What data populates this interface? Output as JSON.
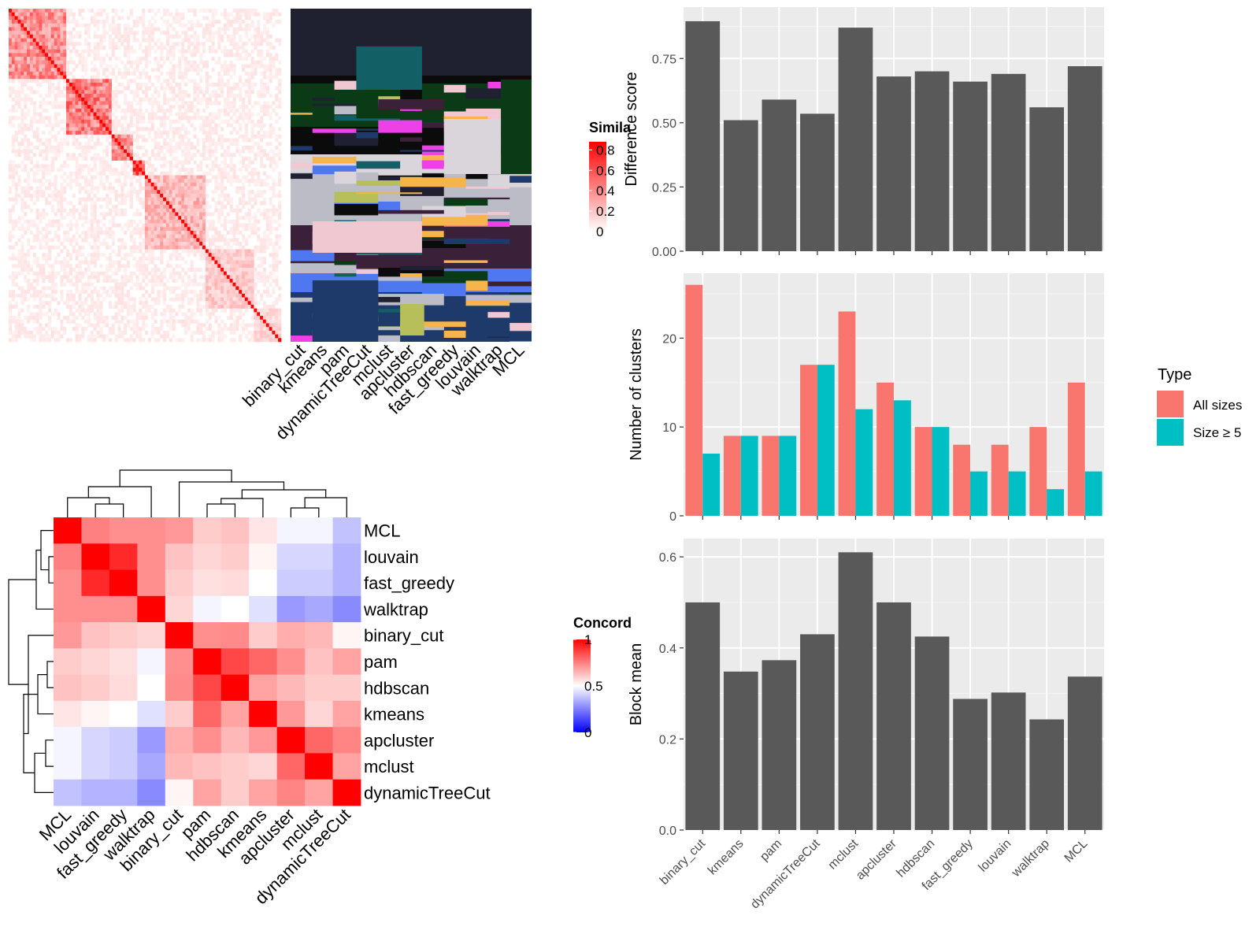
{
  "panels": {
    "similarity": {
      "legend_title": "Simila",
      "legend_ticks": [
        "0.8",
        "0.6",
        "0.4",
        "0.2",
        "0"
      ],
      "low_color": "#ffffff",
      "high_color": "#ff0000",
      "method_labels": [
        "binary_cut",
        "kmeans",
        "pam",
        "dynamicTreeCut",
        "mclust",
        "apcluster",
        "hdbscan",
        "fast_greedy",
        "louvain",
        "walktrap",
        "MCL"
      ]
    },
    "concordance": {
      "legend_title": "Concord",
      "legend_ticks": [
        "1",
        "0.5",
        "0"
      ],
      "colors": {
        "low": "#0000ff",
        "mid": "#ffffff",
        "high": "#ff0000"
      },
      "order": [
        "MCL",
        "louvain",
        "fast_greedy",
        "walktrap",
        "binary_cut",
        "pam",
        "hdbscan",
        "kmeans",
        "apcluster",
        "mclust",
        "dynamicTreeCut"
      ],
      "matrix": [
        [
          1.0,
          0.75,
          0.72,
          0.72,
          0.7,
          0.6,
          0.62,
          0.55,
          0.48,
          0.48,
          0.38
        ],
        [
          0.75,
          1.0,
          0.92,
          0.72,
          0.62,
          0.58,
          0.6,
          0.52,
          0.42,
          0.42,
          0.35
        ],
        [
          0.72,
          0.92,
          1.0,
          0.72,
          0.6,
          0.56,
          0.57,
          0.5,
          0.4,
          0.4,
          0.35
        ],
        [
          0.72,
          0.72,
          0.72,
          1.0,
          0.58,
          0.48,
          0.5,
          0.44,
          0.3,
          0.33,
          0.27
        ],
        [
          0.7,
          0.62,
          0.6,
          0.58,
          1.0,
          0.72,
          0.73,
          0.6,
          0.66,
          0.64,
          0.52
        ],
        [
          0.6,
          0.58,
          0.56,
          0.48,
          0.72,
          1.0,
          0.86,
          0.8,
          0.72,
          0.62,
          0.68
        ],
        [
          0.62,
          0.6,
          0.57,
          0.5,
          0.73,
          0.86,
          1.0,
          0.68,
          0.64,
          0.6,
          0.6
        ],
        [
          0.55,
          0.52,
          0.5,
          0.44,
          0.6,
          0.8,
          0.68,
          1.0,
          0.7,
          0.58,
          0.68
        ],
        [
          0.48,
          0.42,
          0.4,
          0.3,
          0.66,
          0.72,
          0.64,
          0.7,
          1.0,
          0.8,
          0.74
        ],
        [
          0.48,
          0.42,
          0.4,
          0.33,
          0.64,
          0.62,
          0.6,
          0.58,
          0.8,
          1.0,
          0.68
        ],
        [
          0.38,
          0.35,
          0.35,
          0.27,
          0.52,
          0.68,
          0.6,
          0.68,
          0.74,
          0.68,
          1.0
        ]
      ]
    }
  },
  "chart_data": [
    {
      "type": "bar",
      "categories": [
        "binary_cut",
        "kmeans",
        "pam",
        "dynamicTreeCut",
        "mclust",
        "apcluster",
        "hdbscan",
        "fast_greedy",
        "louvain",
        "walktrap",
        "MCL"
      ],
      "values": [
        0.895,
        0.51,
        0.59,
        0.535,
        0.87,
        0.68,
        0.7,
        0.66,
        0.69,
        0.56,
        0.72
      ],
      "ylabel": "Difference score",
      "ylim": [
        0,
        0.95
      ],
      "yticks": [
        0,
        0.25,
        0.5,
        0.75
      ],
      "ytick_labels": [
        "0.00",
        "0.25",
        "0.50",
        "0.75"
      ],
      "bar_color": "#595959",
      "grid": true
    },
    {
      "type": "bar",
      "categories": [
        "binary_cut",
        "kmeans",
        "pam",
        "dynamicTreeCut",
        "mclust",
        "apcluster",
        "hdbscan",
        "fast_greedy",
        "louvain",
        "walktrap",
        "MCL"
      ],
      "series": [
        {
          "name": "All sizes",
          "color": "#f8766d",
          "values": [
            26,
            9,
            9,
            17,
            23,
            15,
            10,
            8,
            8,
            10,
            15
          ]
        },
        {
          "name": "Size ≥ 5",
          "color": "#00bfc4",
          "values": [
            7,
            9,
            9,
            17,
            12,
            13,
            10,
            5,
            5,
            3,
            5
          ]
        }
      ],
      "ylabel": "Number of clusters",
      "ylim": [
        0,
        27.3
      ],
      "yticks": [
        0,
        10,
        20
      ],
      "ytick_labels": [
        "0",
        "10",
        "20"
      ],
      "legend_title": "Type",
      "legend_position": "right",
      "grid": true
    },
    {
      "type": "bar",
      "categories": [
        "binary_cut",
        "kmeans",
        "pam",
        "dynamicTreeCut",
        "mclust",
        "apcluster",
        "hdbscan",
        "fast_greedy",
        "louvain",
        "walktrap",
        "MCL"
      ],
      "values": [
        0.5,
        0.348,
        0.373,
        0.43,
        0.61,
        0.5,
        0.425,
        0.288,
        0.302,
        0.243,
        0.337
      ],
      "ylabel": "Block mean",
      "ylim": [
        0,
        0.64
      ],
      "yticks": [
        0,
        0.2,
        0.4,
        0.6
      ],
      "ytick_labels": [
        "0.0",
        "0.2",
        "0.4",
        "0.6"
      ],
      "bar_color": "#595959",
      "grid": true
    }
  ]
}
